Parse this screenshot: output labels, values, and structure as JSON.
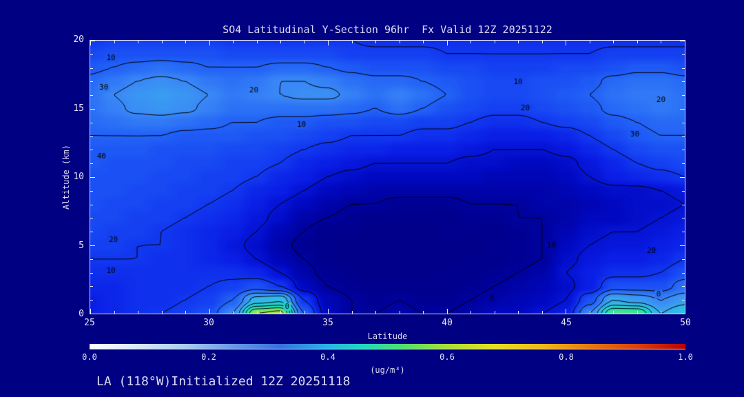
{
  "page": {
    "background": "#000082",
    "text_color": "#DCDCF5",
    "frame_color": "#E8E8F8",
    "contour_color": "#000000"
  },
  "footer": {
    "text": "LA (118°W)Initialized 12Z 20251118"
  },
  "chart_data": {
    "type": "heatmap",
    "title": "SO4 Latitudinal Y-Section 96hr  Fx Valid 12Z 20251122",
    "xlabel": "Latitude",
    "ylabel": "Altitude (km)",
    "xlim": [
      25,
      50
    ],
    "ylim": [
      0,
      20
    ],
    "x_ticks": [
      "25",
      "30",
      "35",
      "40",
      "45",
      "50"
    ],
    "x_tick_values": [
      25,
      30,
      35,
      40,
      45,
      50
    ],
    "y_ticks": [
      "0",
      "5",
      "10",
      "15",
      "20"
    ],
    "y_tick_values": [
      0,
      5,
      10,
      15,
      20
    ],
    "x": [
      25,
      26,
      27,
      28,
      29,
      30,
      31,
      32,
      33,
      34,
      35,
      36,
      37,
      38,
      39,
      40,
      41,
      42,
      43,
      44,
      45,
      46,
      47,
      48,
      49,
      50
    ],
    "y": [
      0,
      1,
      2,
      3,
      4,
      5,
      6,
      7,
      8,
      9,
      10,
      11,
      12,
      13,
      14,
      15,
      16,
      17,
      18,
      19,
      20
    ],
    "values_ugm3": [
      [
        0.12,
        0.13,
        0.14,
        0.15,
        0.16,
        0.18,
        0.25,
        0.5,
        0.52,
        0.2,
        0.08,
        0.05,
        0.05,
        0.06,
        0.05,
        0.05,
        0.06,
        0.08,
        0.08,
        0.1,
        0.12,
        0.25,
        0.45,
        0.45,
        0.3,
        0.35
      ],
      [
        0.12,
        0.13,
        0.14,
        0.14,
        0.15,
        0.16,
        0.2,
        0.32,
        0.34,
        0.15,
        0.07,
        0.05,
        0.04,
        0.05,
        0.04,
        0.04,
        0.05,
        0.06,
        0.07,
        0.08,
        0.1,
        0.18,
        0.3,
        0.28,
        0.25,
        0.28
      ],
      [
        0.13,
        0.13,
        0.14,
        0.14,
        0.14,
        0.15,
        0.16,
        0.18,
        0.15,
        0.08,
        0.05,
        0.04,
        0.03,
        0.03,
        0.03,
        0.03,
        0.04,
        0.05,
        0.06,
        0.07,
        0.09,
        0.12,
        0.18,
        0.18,
        0.18,
        0.22
      ],
      [
        0.14,
        0.14,
        0.14,
        0.14,
        0.14,
        0.14,
        0.14,
        0.13,
        0.1,
        0.06,
        0.04,
        0.03,
        0.02,
        0.02,
        0.02,
        0.03,
        0.03,
        0.04,
        0.05,
        0.06,
        0.1,
        0.12,
        0.14,
        0.14,
        0.15,
        0.18
      ],
      [
        0.15,
        0.15,
        0.15,
        0.14,
        0.14,
        0.13,
        0.12,
        0.1,
        0.07,
        0.05,
        0.03,
        0.02,
        0.02,
        0.02,
        0.02,
        0.02,
        0.03,
        0.03,
        0.04,
        0.05,
        0.09,
        0.11,
        0.12,
        0.12,
        0.13,
        0.15
      ],
      [
        0.16,
        0.16,
        0.15,
        0.15,
        0.14,
        0.13,
        0.11,
        0.09,
        0.06,
        0.04,
        0.03,
        0.02,
        0.02,
        0.02,
        0.02,
        0.02,
        0.02,
        0.03,
        0.04,
        0.05,
        0.08,
        0.1,
        0.11,
        0.11,
        0.12,
        0.13
      ],
      [
        0.17,
        0.16,
        0.16,
        0.15,
        0.14,
        0.13,
        0.12,
        0.1,
        0.07,
        0.05,
        0.03,
        0.03,
        0.02,
        0.02,
        0.02,
        0.03,
        0.03,
        0.03,
        0.04,
        0.05,
        0.07,
        0.09,
        0.1,
        0.1,
        0.11,
        0.12
      ],
      [
        0.17,
        0.17,
        0.16,
        0.16,
        0.15,
        0.14,
        0.13,
        0.11,
        0.09,
        0.06,
        0.05,
        0.04,
        0.03,
        0.03,
        0.03,
        0.03,
        0.04,
        0.04,
        0.05,
        0.05,
        0.06,
        0.08,
        0.08,
        0.09,
        0.1,
        0.11
      ],
      [
        0.18,
        0.17,
        0.17,
        0.16,
        0.16,
        0.15,
        0.14,
        0.12,
        0.1,
        0.08,
        0.06,
        0.05,
        0.05,
        0.04,
        0.04,
        0.04,
        0.05,
        0.05,
        0.05,
        0.06,
        0.06,
        0.07,
        0.08,
        0.09,
        0.09,
        0.1
      ],
      [
        0.18,
        0.18,
        0.17,
        0.17,
        0.16,
        0.16,
        0.15,
        0.13,
        0.12,
        0.1,
        0.08,
        0.07,
        0.06,
        0.06,
        0.06,
        0.06,
        0.06,
        0.06,
        0.06,
        0.06,
        0.07,
        0.08,
        0.09,
        0.09,
        0.1,
        0.11
      ],
      [
        0.18,
        0.18,
        0.18,
        0.17,
        0.17,
        0.16,
        0.16,
        0.15,
        0.13,
        0.12,
        0.1,
        0.09,
        0.08,
        0.08,
        0.08,
        0.08,
        0.08,
        0.07,
        0.07,
        0.07,
        0.08,
        0.1,
        0.12,
        0.13,
        0.14,
        0.15
      ],
      [
        0.19,
        0.18,
        0.18,
        0.18,
        0.17,
        0.17,
        0.16,
        0.16,
        0.15,
        0.13,
        0.12,
        0.11,
        0.1,
        0.1,
        0.1,
        0.1,
        0.09,
        0.09,
        0.08,
        0.08,
        0.09,
        0.11,
        0.13,
        0.15,
        0.16,
        0.17
      ],
      [
        0.19,
        0.19,
        0.19,
        0.18,
        0.18,
        0.18,
        0.17,
        0.17,
        0.16,
        0.15,
        0.14,
        0.13,
        0.13,
        0.12,
        0.12,
        0.12,
        0.11,
        0.1,
        0.1,
        0.1,
        0.11,
        0.13,
        0.15,
        0.17,
        0.18,
        0.18
      ],
      [
        0.2,
        0.2,
        0.2,
        0.2,
        0.19,
        0.19,
        0.19,
        0.18,
        0.18,
        0.17,
        0.16,
        0.15,
        0.15,
        0.15,
        0.14,
        0.14,
        0.13,
        0.12,
        0.12,
        0.12,
        0.13,
        0.15,
        0.17,
        0.19,
        0.2,
        0.2
      ],
      [
        0.21,
        0.22,
        0.23,
        0.23,
        0.22,
        0.21,
        0.2,
        0.2,
        0.19,
        0.19,
        0.18,
        0.18,
        0.17,
        0.17,
        0.16,
        0.16,
        0.15,
        0.14,
        0.14,
        0.15,
        0.16,
        0.17,
        0.19,
        0.2,
        0.21,
        0.21
      ],
      [
        0.22,
        0.24,
        0.26,
        0.27,
        0.26,
        0.24,
        0.22,
        0.22,
        0.22,
        0.22,
        0.22,
        0.21,
        0.2,
        0.22,
        0.2,
        0.18,
        0.17,
        0.16,
        0.16,
        0.17,
        0.18,
        0.19,
        0.21,
        0.22,
        0.23,
        0.22
      ],
      [
        0.22,
        0.25,
        0.27,
        0.28,
        0.27,
        0.25,
        0.23,
        0.24,
        0.25,
        0.26,
        0.26,
        0.24,
        0.22,
        0.24,
        0.22,
        0.2,
        0.18,
        0.17,
        0.17,
        0.18,
        0.19,
        0.2,
        0.22,
        0.23,
        0.23,
        0.22
      ],
      [
        0.21,
        0.23,
        0.25,
        0.26,
        0.25,
        0.23,
        0.22,
        0.23,
        0.25,
        0.25,
        0.24,
        0.22,
        0.21,
        0.21,
        0.2,
        0.19,
        0.18,
        0.17,
        0.17,
        0.18,
        0.18,
        0.19,
        0.21,
        0.22,
        0.22,
        0.21
      ],
      [
        0.19,
        0.2,
        0.21,
        0.22,
        0.21,
        0.2,
        0.2,
        0.2,
        0.21,
        0.21,
        0.2,
        0.19,
        0.18,
        0.18,
        0.18,
        0.17,
        0.17,
        0.16,
        0.16,
        0.16,
        0.17,
        0.17,
        0.18,
        0.19,
        0.19,
        0.18
      ],
      [
        0.17,
        0.18,
        0.18,
        0.18,
        0.18,
        0.18,
        0.17,
        0.17,
        0.17,
        0.17,
        0.17,
        0.16,
        0.16,
        0.16,
        0.16,
        0.15,
        0.15,
        0.15,
        0.15,
        0.15,
        0.15,
        0.15,
        0.16,
        0.16,
        0.16,
        0.16
      ],
      [
        0.15,
        0.16,
        0.16,
        0.16,
        0.16,
        0.16,
        0.15,
        0.15,
        0.15,
        0.15,
        0.15,
        0.15,
        0.14,
        0.14,
        0.14,
        0.14,
        0.14,
        0.14,
        0.14,
        0.14,
        0.14,
        0.14,
        0.14,
        0.14,
        0.14,
        0.14
      ]
    ],
    "contour_levels": [
      0.05,
      0.1,
      0.15,
      0.2,
      0.25,
      0.3,
      0.35,
      0.4,
      0.45,
      0.5
    ],
    "contour_labels": [
      {
        "text": "10",
        "lat": 25.9,
        "alt": 18.7
      },
      {
        "text": "30",
        "lat": 25.6,
        "alt": 16.5
      },
      {
        "text": "20",
        "lat": 31.9,
        "alt": 16.3
      },
      {
        "text": "10",
        "lat": 33.9,
        "alt": 13.8
      },
      {
        "text": "40",
        "lat": 25.5,
        "alt": 11.5
      },
      {
        "text": "20",
        "lat": 26.0,
        "alt": 5.4
      },
      {
        "text": "10",
        "lat": 25.9,
        "alt": 3.1
      },
      {
        "text": "0",
        "lat": 33.3,
        "alt": 0.5
      },
      {
        "text": "10",
        "lat": 43.0,
        "alt": 16.9
      },
      {
        "text": "20",
        "lat": 43.3,
        "alt": 15.0
      },
      {
        "text": "20",
        "lat": 49.0,
        "alt": 15.6
      },
      {
        "text": "30",
        "lat": 47.9,
        "alt": 13.1
      },
      {
        "text": "10",
        "lat": 44.4,
        "alt": 5.0
      },
      {
        "text": "20",
        "lat": 48.6,
        "alt": 4.6
      },
      {
        "text": "0",
        "lat": 41.9,
        "alt": 1.1
      },
      {
        "text": "0",
        "lat": 48.9,
        "alt": 1.4
      }
    ],
    "fill_colormap": [
      {
        "pos": 0.0,
        "color": "#000082"
      },
      {
        "pos": 0.04,
        "color": "#000092"
      },
      {
        "pos": 0.08,
        "color": "#0008C0"
      },
      {
        "pos": 0.12,
        "color": "#0A1EE6"
      },
      {
        "pos": 0.16,
        "color": "#1440F2"
      },
      {
        "pos": 0.2,
        "color": "#2262F6"
      },
      {
        "pos": 0.25,
        "color": "#3A88F6"
      },
      {
        "pos": 0.3,
        "color": "#38AAEE"
      },
      {
        "pos": 0.35,
        "color": "#28C8E0"
      },
      {
        "pos": 0.4,
        "color": "#18DCC0"
      },
      {
        "pos": 0.45,
        "color": "#50E484"
      },
      {
        "pos": 0.5,
        "color": "#9CE44E"
      },
      {
        "pos": 0.55,
        "color": "#D8E430"
      },
      {
        "pos": 0.6,
        "color": "#F0D020"
      },
      {
        "pos": 0.7,
        "color": "#F09A14"
      },
      {
        "pos": 0.8,
        "color": "#E65A10"
      },
      {
        "pos": 0.9,
        "color": "#D42A0C"
      },
      {
        "pos": 1.0,
        "color": "#BE0000"
      }
    ],
    "colorbar": {
      "min": 0.0,
      "max": 1.0,
      "ticks": [
        "0.0",
        "0.2",
        "0.4",
        "0.6",
        "0.8",
        "1.0"
      ],
      "tick_values": [
        0.0,
        0.2,
        0.4,
        0.6,
        0.8,
        1.0
      ],
      "label": "(ug/m³)",
      "stops": [
        {
          "pos": 0.0,
          "color": "#FFFFFF"
        },
        {
          "pos": 0.08,
          "color": "#D8E8FA"
        },
        {
          "pos": 0.16,
          "color": "#A8CCF2"
        },
        {
          "pos": 0.24,
          "color": "#6898E8"
        },
        {
          "pos": 0.32,
          "color": "#3870E0"
        },
        {
          "pos": 0.4,
          "color": "#28B4E8"
        },
        {
          "pos": 0.46,
          "color": "#20D8C0"
        },
        {
          "pos": 0.52,
          "color": "#48E070"
        },
        {
          "pos": 0.6,
          "color": "#A8E038"
        },
        {
          "pos": 0.68,
          "color": "#E8E020"
        },
        {
          "pos": 0.76,
          "color": "#F0B818"
        },
        {
          "pos": 0.84,
          "color": "#E87810"
        },
        {
          "pos": 0.92,
          "color": "#D84010"
        },
        {
          "pos": 1.0,
          "color": "#B80000"
        }
      ]
    }
  }
}
